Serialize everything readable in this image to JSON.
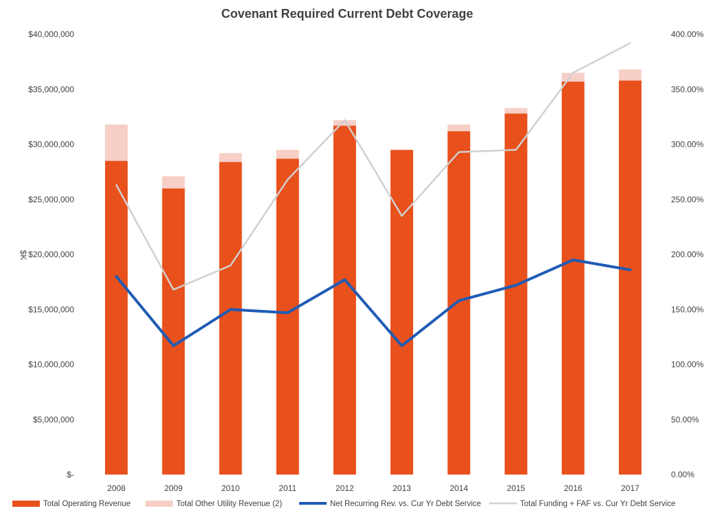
{
  "chart_data": {
    "type": "bar",
    "title": "Covenant Required  Current Debt Coverage",
    "ylabel": "$K",
    "xlabel": "",
    "categories": [
      "2008",
      "2009",
      "2010",
      "2011",
      "2012",
      "2013",
      "2014",
      "2015",
      "2016",
      "2017"
    ],
    "stacked": true,
    "y_left": {
      "range": [
        0,
        40000000
      ],
      "ticks": [
        0,
        5000000,
        10000000,
        15000000,
        20000000,
        25000000,
        30000000,
        35000000,
        40000000
      ],
      "tick_labels": [
        "$-",
        "$5,000,000",
        "$10,000,000",
        "$15,000,000",
        "$20,000,000",
        "$25,000,000",
        "$30,000,000",
        "$35,000,000",
        "$40,000,000"
      ]
    },
    "y_right": {
      "range": [
        0,
        400
      ],
      "ticks": [
        0,
        50,
        100,
        150,
        200,
        250,
        300,
        350,
        400
      ],
      "tick_labels": [
        "0.00%",
        "50.00%",
        "100.00%",
        "150.00%",
        "200.00%",
        "250.00%",
        "300.00%",
        "350.00%",
        "400.00%"
      ]
    },
    "grid": false,
    "legend_position": "bottom",
    "series": [
      {
        "name": "Total Operating Revenue",
        "kind": "bar",
        "axis": "left",
        "color": "#E8501C",
        "values": [
          28500000,
          26000000,
          28400000,
          28700000,
          31700000,
          29500000,
          31200000,
          32800000,
          35700000,
          35800000
        ]
      },
      {
        "name": "Total Other Utility Revenue (2)",
        "kind": "bar",
        "axis": "left",
        "color": "#F7CFC6",
        "values": [
          3300000,
          1100000,
          800000,
          800000,
          500000,
          0,
          600000,
          500000,
          800000,
          1000000
        ]
      },
      {
        "name": "Net Recurring Rev. vs. Cur Yr Debt Service",
        "kind": "line",
        "axis": "right",
        "color": "#1F5BB5",
        "values": [
          180,
          117,
          150,
          147,
          177,
          117,
          158,
          172,
          195,
          186
        ]
      },
      {
        "name": "Total Funding + FAF vs. Cur Yr Debt Service",
        "kind": "line",
        "axis": "right",
        "color": "#D0D0D0",
        "values": [
          263,
          168,
          190,
          268,
          322,
          235,
          293,
          295,
          365,
          392
        ]
      }
    ]
  }
}
